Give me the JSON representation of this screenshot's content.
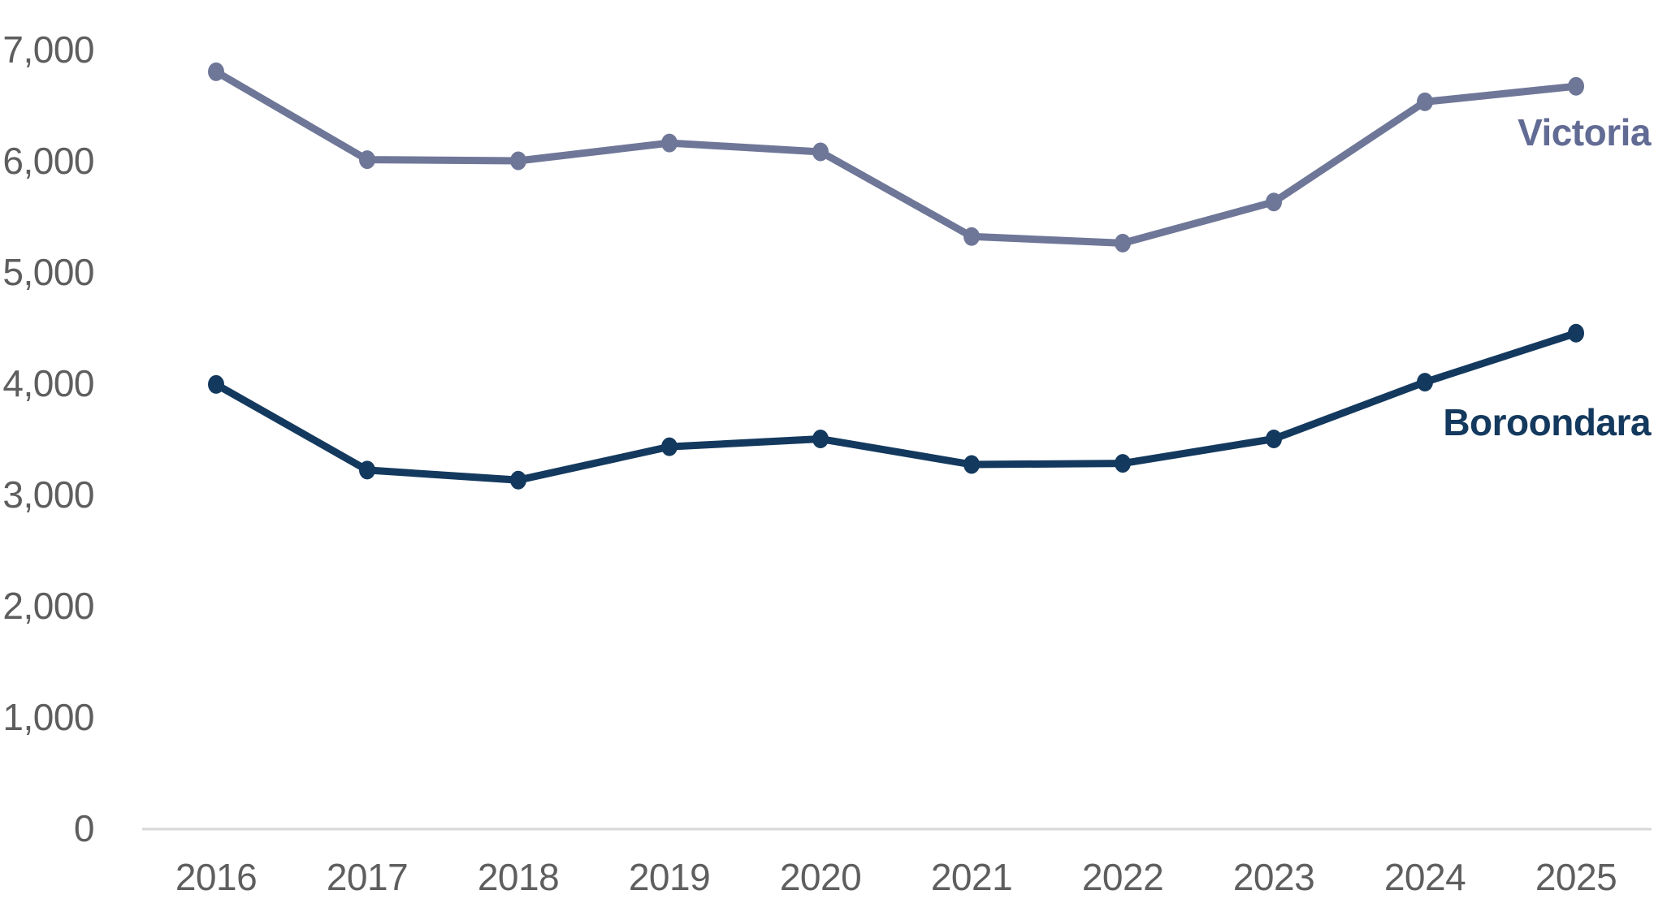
{
  "chart_data": {
    "type": "line",
    "title": "",
    "xlabel": "",
    "ylabel": "",
    "categories": [
      "2016",
      "2017",
      "2018",
      "2019",
      "2020",
      "2021",
      "2022",
      "2023",
      "2024",
      "2025"
    ],
    "series": [
      {
        "name": "Victoria",
        "color": "#6F7798",
        "label_color": "#626B94",
        "values": [
          6800,
          6010,
          6000,
          6160,
          6080,
          5320,
          5260,
          5630,
          6530,
          6670
        ]
      },
      {
        "name": "Boroondara",
        "color": "#14395E",
        "label_color": "#14395E",
        "values": [
          3990,
          3220,
          3130,
          3430,
          3500,
          3270,
          3280,
          3500,
          4010,
          4450
        ]
      }
    ],
    "ylim": [
      0,
      7000
    ],
    "ytick_step": 1000,
    "ytick_labels": [
      "0",
      "1,000",
      "2,000",
      "3,000",
      "4,000",
      "5,000",
      "6,000",
      "7,000"
    ],
    "grid": false,
    "legend_position": "inline-right-of-lines",
    "colors": {
      "tick_text": "#5E5E5E",
      "axis_line": "#D8D8D8",
      "background": "#FFFFFF"
    }
  }
}
